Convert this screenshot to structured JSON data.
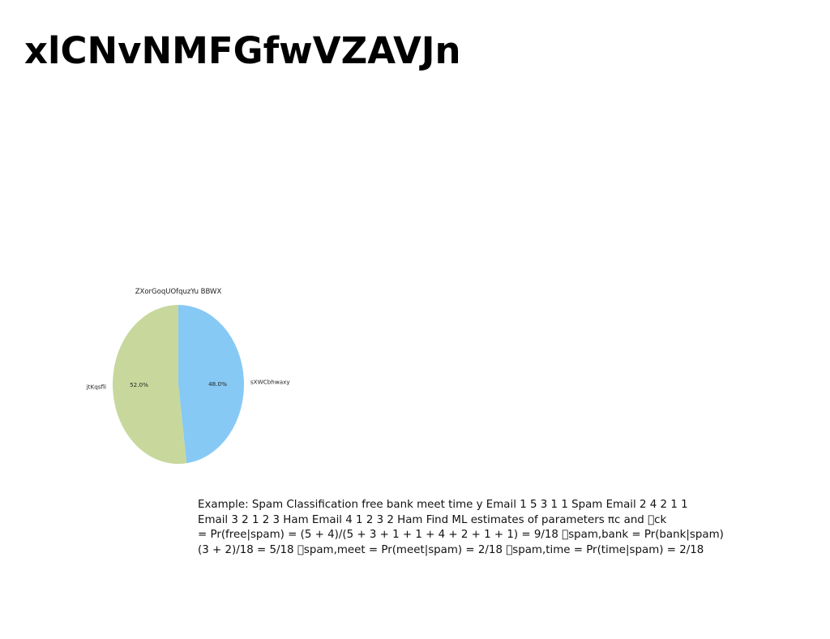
{
  "slide": {
    "title": "xlCNvNMFGfwVZAVJn",
    "body_lines": [
      "Example: Spam Classification free bank meet time y Email 1 5 3 1 1 Spam Email 2 4 2 1 1",
      "Email 3 2 1 2 3 Ham Email 4 1 2 3 2 Ham Find ML estimates of parameters πc and \u0000ck",
      "= Pr(free|spam) = (5 + 4)/(5 + 3 + 1 + 1 + 4 + 2 + 1 + 1) = 9/18 \u0000spam,bank = Pr(bank|spam)",
      "(3 + 2)/18 = 5/18 \u0000spam,meet = Pr(meet|spam) = 2/18 \u0000spam,time = Pr(time|spam) = 2/18"
    ]
  },
  "chart_data": {
    "type": "pie",
    "title": "ZXorGoqUOfquzYu BBWX",
    "slices": [
      {
        "label": "sXWCbhwaxy",
        "value": 48.0,
        "percent_label": "48.0%",
        "color": "#87c9f5"
      },
      {
        "label": "jtKqsfli",
        "value": 52.0,
        "percent_label": "52.0%",
        "color": "#c8d89d"
      }
    ],
    "start_angle_deg": 90,
    "direction": "clockwise",
    "legend": "none"
  }
}
